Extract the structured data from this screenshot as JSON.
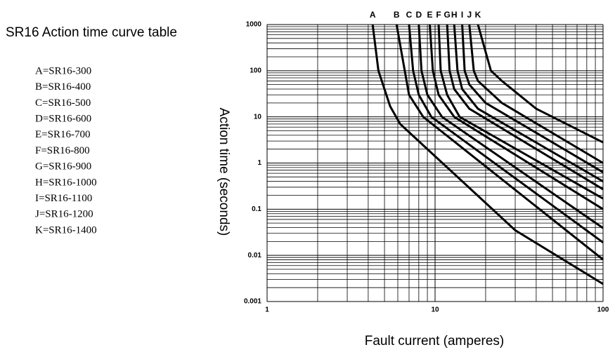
{
  "chart_data": {
    "type": "line",
    "title": "SR16 Action time curve table",
    "rating_labels": [
      "A=SR16-300",
      "B=SR16-400",
      "C=SR16-500",
      "D=SR16-600",
      "E=SR16-700",
      "F=SR16-800",
      "G=SR16-900",
      "H=SR16-1000",
      "I=SR16-1100",
      "J=SR16-1200",
      "K=SR16-1400"
    ],
    "x_label": "Fault current (amperes)",
    "y_label": "Action time (seconds)",
    "xlog": true,
    "ylog": true,
    "grid": true,
    "color": "#000000",
    "xlim": [
      1,
      100
    ],
    "xticks": [
      1,
      10,
      100
    ],
    "ylim": [
      0.001,
      1000
    ],
    "yticks": [
      0.001,
      0.01,
      0.1,
      1,
      10,
      100,
      1000
    ],
    "series": [
      {
        "name": "A",
        "x": [
          4.25,
          4.6,
          5.4,
          6.2,
          30,
          100
        ],
        "values": [
          1000,
          100,
          17,
          7,
          0.035,
          0.0024
        ]
      },
      {
        "name": "B",
        "x": [
          5.9,
          6.6,
          7,
          8.5,
          100
        ],
        "values": [
          1000,
          100,
          30,
          10,
          0.0081
        ]
      },
      {
        "name": "C",
        "x": [
          7,
          7.4,
          8,
          9.5,
          100
        ],
        "values": [
          1000,
          100,
          30,
          10,
          0.019
        ]
      },
      {
        "name": "D",
        "x": [
          8,
          8.3,
          9,
          11,
          100
        ],
        "values": [
          1000,
          100,
          30,
          10,
          0.039
        ]
      },
      {
        "name": "E",
        "x": [
          9.3,
          9.7,
          10.5,
          13,
          100
        ],
        "values": [
          1000,
          100,
          30,
          10,
          0.1
        ]
      },
      {
        "name": "F",
        "x": [
          10.5,
          10.8,
          11.8,
          14,
          100
        ],
        "values": [
          1000,
          100,
          30,
          10,
          0.17
        ]
      },
      {
        "name": "G",
        "x": [
          11.8,
          12.2,
          13,
          16,
          100
        ],
        "values": [
          1000,
          100,
          40,
          15,
          0.27
        ]
      },
      {
        "name": "H",
        "x": [
          13,
          13.6,
          14.5,
          18,
          100
        ],
        "values": [
          1000,
          100,
          40,
          15,
          0.4
        ]
      },
      {
        "name": "I",
        "x": [
          14.5,
          15,
          16,
          20,
          100
        ],
        "values": [
          1000,
          100,
          50,
          20,
          0.63
        ]
      },
      {
        "name": "J",
        "x": [
          16,
          17,
          18,
          25,
          100
        ],
        "values": [
          1000,
          100,
          60,
          20,
          1
        ]
      },
      {
        "name": "K",
        "x": [
          18,
          21.5,
          25,
          40,
          100
        ],
        "values": [
          1000,
          100,
          60,
          15,
          2.8
        ]
      }
    ]
  }
}
